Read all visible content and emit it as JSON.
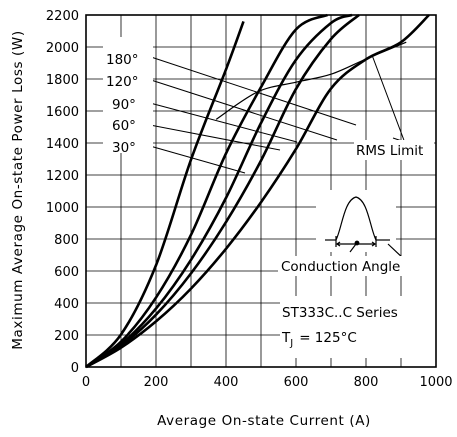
{
  "chart_data": {
    "type": "line",
    "xlabel": "Average On-state Current (A)",
    "ylabel": "Maximum Average On-state Power Loss (W)",
    "xlim": [
      0,
      1000
    ],
    "ylim": [
      0,
      2200
    ],
    "x_ticks": [
      0,
      200,
      400,
      600,
      800,
      1000
    ],
    "y_ticks": [
      0,
      200,
      400,
      600,
      800,
      1000,
      1200,
      1400,
      1600,
      1800,
      2000,
      2200
    ],
    "grid": true,
    "series": [
      {
        "name": "180°",
        "x": [
          0,
          100,
          200,
          300,
          400,
          500,
          600,
          700,
          800,
          900,
          980
        ],
        "y": [
          0,
          121,
          285,
          490,
          739,
          1030,
          1363,
          1740,
          1923,
          2030,
          2200
        ]
      },
      {
        "name": "120°",
        "x": [
          0,
          100,
          200,
          300,
          400,
          500,
          600,
          700,
          780
        ],
        "y": [
          0,
          132,
          327,
          585,
          906,
          1290,
          1738,
          2050,
          2200
        ]
      },
      {
        "name": "90°",
        "x": [
          0,
          100,
          200,
          300,
          400,
          500,
          600,
          700,
          760
        ],
        "y": [
          0,
          142,
          365,
          670,
          1057,
          1525,
          1920,
          2150,
          2200
        ]
      },
      {
        "name": "60°",
        "x": [
          0,
          100,
          200,
          300,
          400,
          500,
          600,
          690
        ],
        "y": [
          0,
          158,
          434,
          826,
          1335,
          1749,
          2110,
          2200
        ]
      },
      {
        "name": "30°",
        "x": [
          0,
          100,
          200,
          300,
          400,
          450
        ],
        "y": [
          0,
          203,
          636,
          1296,
          1860,
          2160
        ]
      }
    ],
    "rms_limit": {
      "label": "RMS Limit",
      "x": [
        372,
        490,
        600,
        700,
        800,
        915
      ],
      "y": [
        1548,
        1719,
        1780,
        1830,
        1925,
        2030
      ]
    },
    "legend_labels": [
      "180°",
      "120°",
      "90°",
      "60°",
      "30°"
    ],
    "annotations": {
      "conduction_angle": "Conduction Angle",
      "series_name": "ST333C..C Series",
      "tj_prefix": "T",
      "tj_subscript": "J",
      "tj_value": "= 125°C"
    }
  }
}
